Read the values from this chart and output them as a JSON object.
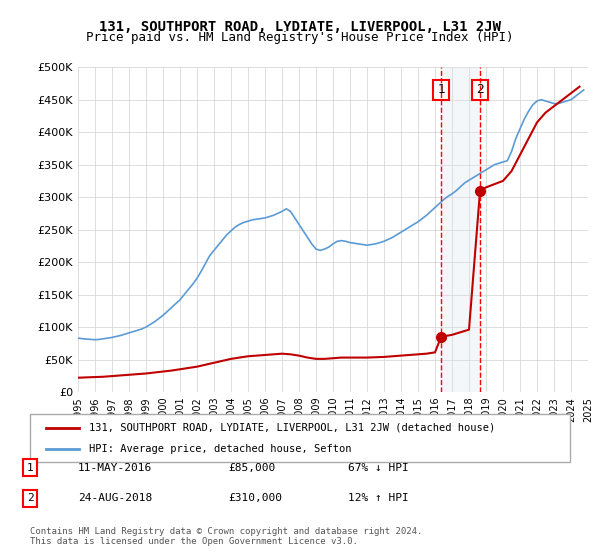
{
  "title": "131, SOUTHPORT ROAD, LYDIATE, LIVERPOOL, L31 2JW",
  "subtitle": "Price paid vs. HM Land Registry's House Price Index (HPI)",
  "legend_label_property": "131, SOUTHPORT ROAD, LYDIATE, LIVERPOOL, L31 2JW (detached house)",
  "legend_label_hpi": "HPI: Average price, detached house, Sefton",
  "footnote": "Contains HM Land Registry data © Crown copyright and database right 2024.\nThis data is licensed under the Open Government Licence v3.0.",
  "table_rows": [
    {
      "num": "1",
      "date": "11-MAY-2016",
      "price": "£85,000",
      "change": "67% ↓ HPI"
    },
    {
      "num": "2",
      "date": "24-AUG-2018",
      "price": "£310,000",
      "change": "12% ↑ HPI"
    }
  ],
  "sale1_year": 2016.36,
  "sale1_price": 85000,
  "sale2_year": 2018.65,
  "sale2_price": 310000,
  "ylim": [
    0,
    500000
  ],
  "xlim": [
    1995,
    2025
  ],
  "yticks": [
    0,
    50000,
    100000,
    150000,
    200000,
    250000,
    300000,
    350000,
    400000,
    450000,
    500000
  ],
  "ytick_labels": [
    "£0",
    "£50K",
    "£100K",
    "£150K",
    "£200K",
    "£250K",
    "£300K",
    "£350K",
    "£400K",
    "£450K",
    "£500K"
  ],
  "xticks": [
    1995,
    1996,
    1997,
    1998,
    1999,
    2000,
    2001,
    2002,
    2003,
    2004,
    2005,
    2006,
    2007,
    2008,
    2009,
    2010,
    2011,
    2012,
    2013,
    2014,
    2015,
    2016,
    2017,
    2018,
    2019,
    2020,
    2021,
    2022,
    2023,
    2024,
    2025
  ],
  "hpi_color": "#5b9bd5",
  "property_color": "#c00000",
  "vline_color": "#ff0000",
  "shade_color": "#dce6f1",
  "grid_color": "#d0d0d0",
  "background_color": "#ffffff",
  "hpi_data": {
    "years": [
      1995.0,
      1995.25,
      1995.5,
      1995.75,
      1996.0,
      1996.25,
      1996.5,
      1996.75,
      1997.0,
      1997.25,
      1997.5,
      1997.75,
      1998.0,
      1998.25,
      1998.5,
      1998.75,
      1999.0,
      1999.25,
      1999.5,
      1999.75,
      2000.0,
      2000.25,
      2000.5,
      2000.75,
      2001.0,
      2001.25,
      2001.5,
      2001.75,
      2002.0,
      2002.25,
      2002.5,
      2002.75,
      2003.0,
      2003.25,
      2003.5,
      2003.75,
      2004.0,
      2004.25,
      2004.5,
      2004.75,
      2005.0,
      2005.25,
      2005.5,
      2005.75,
      2006.0,
      2006.25,
      2006.5,
      2006.75,
      2007.0,
      2007.25,
      2007.5,
      2007.75,
      2008.0,
      2008.25,
      2008.5,
      2008.75,
      2009.0,
      2009.25,
      2009.5,
      2009.75,
      2010.0,
      2010.25,
      2010.5,
      2010.75,
      2011.0,
      2011.25,
      2011.5,
      2011.75,
      2012.0,
      2012.25,
      2012.5,
      2012.75,
      2013.0,
      2013.25,
      2013.5,
      2013.75,
      2014.0,
      2014.25,
      2014.5,
      2014.75,
      2015.0,
      2015.25,
      2015.5,
      2015.75,
      2016.0,
      2016.25,
      2016.5,
      2016.75,
      2017.0,
      2017.25,
      2017.5,
      2017.75,
      2018.0,
      2018.25,
      2018.5,
      2018.75,
      2019.0,
      2019.25,
      2019.5,
      2019.75,
      2020.0,
      2020.25,
      2020.5,
      2020.75,
      2021.0,
      2021.25,
      2021.5,
      2021.75,
      2022.0,
      2022.25,
      2022.5,
      2022.75,
      2023.0,
      2023.25,
      2023.5,
      2023.75,
      2024.0,
      2024.25,
      2024.5,
      2024.75
    ],
    "values": [
      83000,
      82000,
      81500,
      81000,
      80500,
      81000,
      82000,
      83000,
      84000,
      85500,
      87000,
      89000,
      91000,
      93000,
      95000,
      97000,
      100000,
      104000,
      108000,
      113000,
      118000,
      124000,
      130000,
      136000,
      142000,
      150000,
      158000,
      166000,
      175000,
      186000,
      198000,
      210000,
      218000,
      226000,
      234000,
      242000,
      248000,
      254000,
      258000,
      261000,
      263000,
      265000,
      266000,
      267000,
      268000,
      270000,
      272000,
      275000,
      278000,
      282000,
      278000,
      268000,
      258000,
      248000,
      238000,
      228000,
      220000,
      218000,
      220000,
      223000,
      228000,
      232000,
      233000,
      232000,
      230000,
      229000,
      228000,
      227000,
      226000,
      227000,
      228000,
      230000,
      232000,
      235000,
      238000,
      242000,
      246000,
      250000,
      254000,
      258000,
      262000,
      267000,
      272000,
      278000,
      284000,
      290000,
      296000,
      301000,
      305000,
      310000,
      316000,
      322000,
      326000,
      330000,
      334000,
      338000,
      342000,
      346000,
      350000,
      352000,
      354000,
      356000,
      370000,
      390000,
      405000,
      420000,
      432000,
      442000,
      448000,
      450000,
      448000,
      446000,
      444000,
      444000,
      446000,
      448000,
      450000,
      455000,
      460000,
      465000
    ]
  },
  "property_data": {
    "years": [
      1995.0,
      1995.5,
      1996.0,
      1996.5,
      1997.0,
      1997.5,
      1998.0,
      1998.5,
      1999.0,
      1999.5,
      2000.0,
      2000.5,
      2001.0,
      2001.5,
      2002.0,
      2002.5,
      2003.0,
      2003.5,
      2004.0,
      2004.5,
      2005.0,
      2005.5,
      2006.0,
      2006.5,
      2007.0,
      2007.5,
      2008.0,
      2008.5,
      2009.0,
      2009.5,
      2010.0,
      2010.5,
      2011.0,
      2011.5,
      2012.0,
      2012.5,
      2013.0,
      2013.5,
      2014.0,
      2014.5,
      2015.0,
      2015.5,
      2016.0,
      2016.36,
      2016.36,
      2017.0,
      2017.5,
      2018.0,
      2018.65,
      2018.65,
      2019.0,
      2019.5,
      2020.0,
      2020.5,
      2021.0,
      2021.5,
      2022.0,
      2022.5,
      2023.0,
      2023.5,
      2024.0,
      2024.5
    ],
    "values": [
      22000,
      22500,
      23000,
      23500,
      24500,
      25500,
      26500,
      27500,
      28500,
      30000,
      31500,
      33000,
      35000,
      37000,
      39000,
      42000,
      45000,
      48000,
      51000,
      53000,
      55000,
      56000,
      57000,
      58000,
      59000,
      58000,
      56000,
      53000,
      51000,
      51000,
      52000,
      53000,
      53000,
      53000,
      53000,
      53500,
      54000,
      55000,
      56000,
      57000,
      58000,
      59000,
      61000,
      85000,
      85000,
      88000,
      92000,
      96000,
      310000,
      310000,
      315000,
      320000,
      325000,
      340000,
      365000,
      390000,
      415000,
      430000,
      440000,
      450000,
      460000,
      470000
    ]
  }
}
